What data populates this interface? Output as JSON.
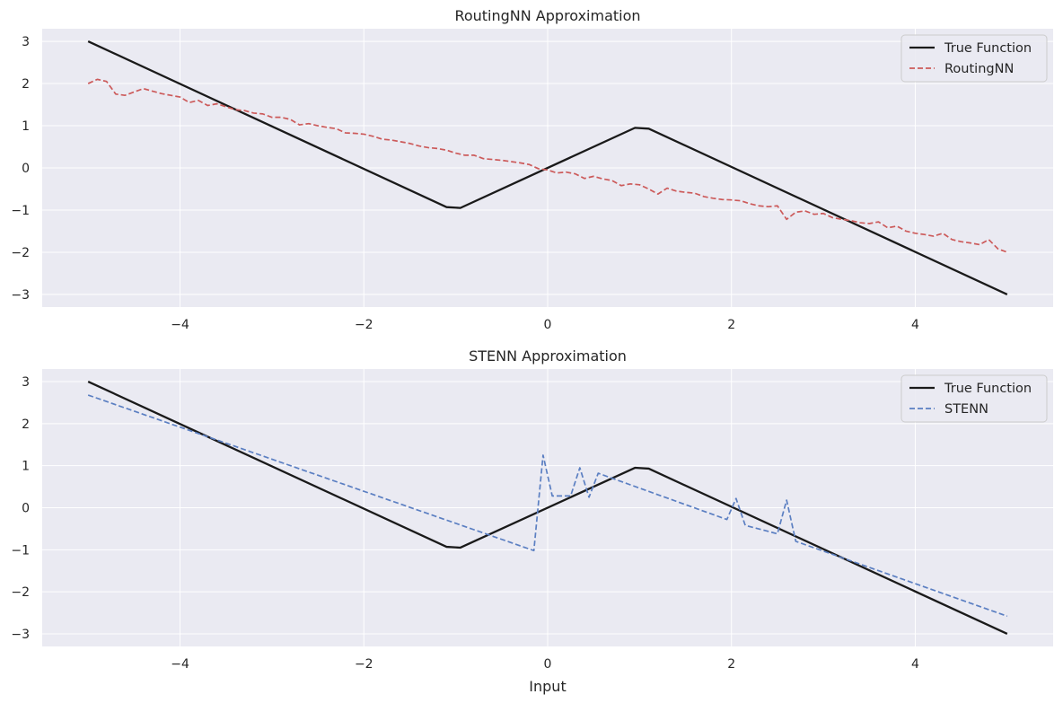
{
  "chart_data": [
    {
      "type": "line",
      "title": "RoutingNN Approximation",
      "xlabel": "",
      "ylabel": "",
      "xlim": [
        -5.5,
        5.5
      ],
      "ylim": [
        -3.3,
        3.3
      ],
      "xticks": [
        -4,
        -2,
        0,
        2,
        4
      ],
      "yticks": [
        3,
        2,
        1,
        0,
        -1,
        -2,
        -3
      ],
      "xtick_labels": [
        "−4",
        "−2",
        "0",
        "2",
        "4"
      ],
      "ytick_labels": [
        "3",
        "2",
        "1",
        "0",
        "−1",
        "−2",
        "−3"
      ],
      "legend_position": "top-right",
      "series": [
        {
          "name": "True Function",
          "color": "#1a1a1a",
          "style": "solid",
          "x": [
            -5,
            -1.1,
            -0.95,
            0.95,
            1.1,
            5
          ],
          "y": [
            3,
            -0.93,
            -0.95,
            0.95,
            0.93,
            -3
          ]
        },
        {
          "name": "RoutingNN",
          "color": "#cc5a5a",
          "style": "dashed",
          "x": [
            -5,
            -4.9,
            -4.8,
            -4.7,
            -4.6,
            -4.5,
            -4.4,
            -4.3,
            -4.2,
            -4.1,
            -4.0,
            -3.9,
            -3.8,
            -3.7,
            -3.6,
            -3.5,
            -3.4,
            -3.3,
            -3.2,
            -3.1,
            -3.0,
            -2.9,
            -2.8,
            -2.7,
            -2.6,
            -2.5,
            -2.4,
            -2.3,
            -2.2,
            -2.1,
            -2.0,
            -1.9,
            -1.8,
            -1.7,
            -1.6,
            -1.5,
            -1.4,
            -1.3,
            -1.2,
            -1.1,
            -1.0,
            -0.9,
            -0.8,
            -0.7,
            -0.6,
            -0.5,
            -0.4,
            -0.3,
            -0.2,
            -0.1,
            0.0,
            0.1,
            0.2,
            0.3,
            0.4,
            0.5,
            0.6,
            0.7,
            0.8,
            0.9,
            1.0,
            1.1,
            1.2,
            1.3,
            1.4,
            1.5,
            1.6,
            1.7,
            1.8,
            1.9,
            2.0,
            2.1,
            2.2,
            2.3,
            2.4,
            2.5,
            2.6,
            2.7,
            2.8,
            2.9,
            3.0,
            3.1,
            3.2,
            3.3,
            3.4,
            3.5,
            3.6,
            3.7,
            3.8,
            3.9,
            4.0,
            4.1,
            4.2,
            4.3,
            4.4,
            4.5,
            4.6,
            4.7,
            4.8,
            4.9,
            5.0
          ],
          "y": [
            2.0,
            2.1,
            2.05,
            1.75,
            1.72,
            1.8,
            1.88,
            1.82,
            1.76,
            1.72,
            1.68,
            1.55,
            1.6,
            1.48,
            1.52,
            1.45,
            1.38,
            1.36,
            1.3,
            1.28,
            1.2,
            1.2,
            1.15,
            1.02,
            1.05,
            1.0,
            0.96,
            0.93,
            0.83,
            0.82,
            0.8,
            0.75,
            0.68,
            0.66,
            0.62,
            0.58,
            0.52,
            0.48,
            0.46,
            0.42,
            0.35,
            0.3,
            0.3,
            0.22,
            0.2,
            0.18,
            0.15,
            0.12,
            0.08,
            -0.02,
            -0.05,
            -0.12,
            -0.1,
            -0.14,
            -0.25,
            -0.2,
            -0.26,
            -0.3,
            -0.42,
            -0.38,
            -0.4,
            -0.5,
            -0.62,
            -0.48,
            -0.55,
            -0.58,
            -0.6,
            -0.68,
            -0.72,
            -0.75,
            -0.76,
            -0.78,
            -0.85,
            -0.9,
            -0.92,
            -0.9,
            -1.22,
            -1.05,
            -1.02,
            -1.1,
            -1.08,
            -1.18,
            -1.22,
            -1.25,
            -1.3,
            -1.32,
            -1.28,
            -1.42,
            -1.38,
            -1.5,
            -1.55,
            -1.58,
            -1.62,
            -1.55,
            -1.7,
            -1.75,
            -1.78,
            -1.82,
            -1.7,
            -1.92,
            -2.0
          ]
        }
      ]
    },
    {
      "type": "line",
      "title": "STENN Approximation",
      "xlabel": "Input",
      "ylabel": "",
      "xlim": [
        -5.5,
        5.5
      ],
      "ylim": [
        -3.3,
        3.3
      ],
      "xticks": [
        -4,
        -2,
        0,
        2,
        4
      ],
      "yticks": [
        3,
        2,
        1,
        0,
        -1,
        -2,
        -3
      ],
      "xtick_labels": [
        "−4",
        "−2",
        "0",
        "2",
        "4"
      ],
      "ytick_labels": [
        "3",
        "2",
        "1",
        "0",
        "−1",
        "−2",
        "−3"
      ],
      "legend_position": "top-right",
      "series": [
        {
          "name": "True Function",
          "color": "#1a1a1a",
          "style": "solid",
          "x": [
            -5,
            -1.1,
            -0.95,
            0.95,
            1.1,
            5
          ],
          "y": [
            3,
            -0.93,
            -0.95,
            0.95,
            0.93,
            -3
          ]
        },
        {
          "name": "STENN",
          "color": "#5b7fc2",
          "style": "dashed",
          "x": [
            -5,
            -0.15,
            -0.05,
            0.05,
            0.25,
            0.35,
            0.45,
            0.55,
            1.95,
            2.05,
            2.15,
            2.5,
            2.6,
            2.7,
            5.0
          ],
          "y": [
            2.68,
            -1.02,
            1.25,
            0.28,
            0.28,
            0.95,
            0.25,
            0.82,
            -0.28,
            0.22,
            -0.42,
            -0.62,
            0.18,
            -0.8,
            -2.58
          ]
        }
      ]
    }
  ]
}
